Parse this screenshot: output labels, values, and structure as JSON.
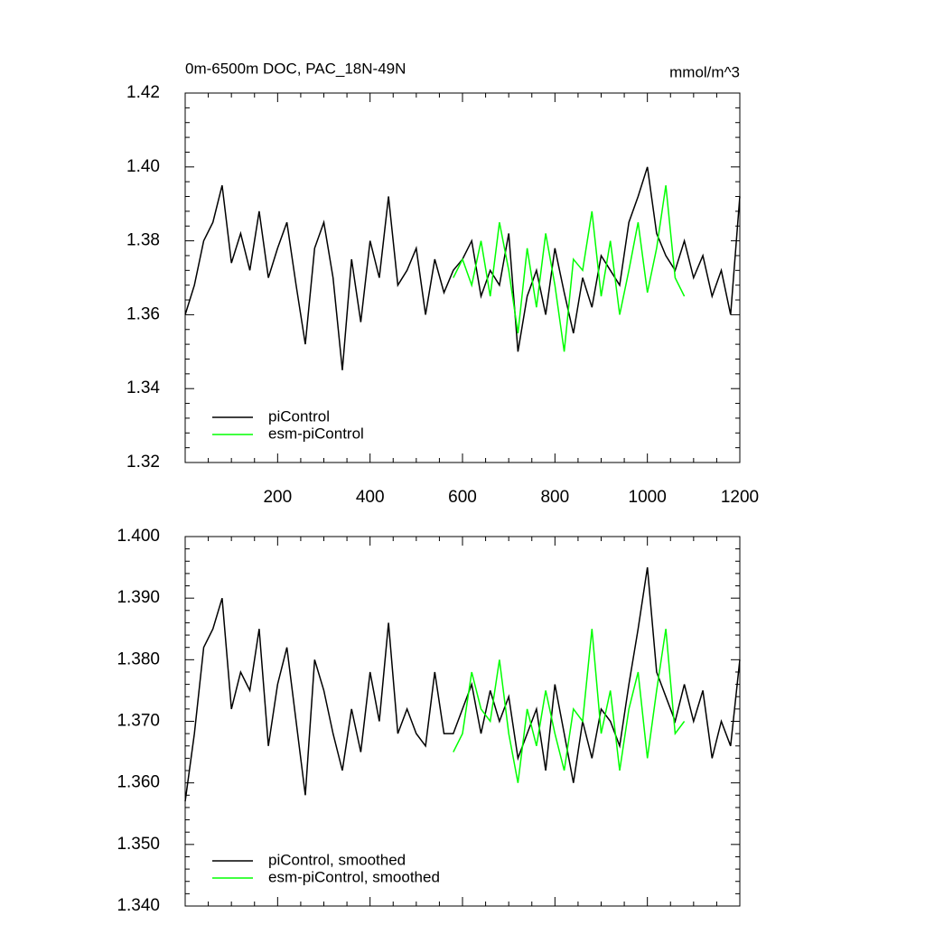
{
  "chart_data": [
    {
      "type": "line",
      "title": "0m-6500m DOC, PAC_18N-49N",
      "units": "mmol/m^3",
      "xlim": [
        0,
        1200
      ],
      "xticks": [
        200,
        400,
        600,
        800,
        1000,
        1200
      ],
      "xticklabels": true,
      "ylim": [
        1.32,
        1.42
      ],
      "yticks": [
        1.32,
        1.34,
        1.36,
        1.38,
        {
          "value": 1.4,
          "label": "1.40"
        },
        1.42
      ],
      "grid": false,
      "legend": "lower left",
      "series": [
        {
          "name": "piControl",
          "color": "#000000",
          "x": [
            0,
            20,
            40,
            60,
            80,
            100,
            120,
            140,
            160,
            180,
            200,
            220,
            240,
            260,
            280,
            300,
            320,
            340,
            360,
            380,
            400,
            420,
            440,
            460,
            480,
            500,
            520,
            540,
            560,
            580,
            600,
            620,
            640,
            660,
            680,
            700,
            720,
            740,
            760,
            780,
            800,
            820,
            840,
            860,
            880,
            900,
            920,
            940,
            960,
            980,
            1000,
            1020,
            1040,
            1060,
            1080,
            1100,
            1120,
            1140,
            1160,
            1180,
            1200
          ],
          "values": [
            1.36,
            1.368,
            1.38,
            1.385,
            1.395,
            1.374,
            1.382,
            1.372,
            1.388,
            1.37,
            1.378,
            1.385,
            1.368,
            1.352,
            1.378,
            1.385,
            1.37,
            1.345,
            1.375,
            1.358,
            1.38,
            1.37,
            1.392,
            1.368,
            1.372,
            1.378,
            1.36,
            1.375,
            1.366,
            1.372,
            1.375,
            1.38,
            1.365,
            1.372,
            1.368,
            1.382,
            1.35,
            1.365,
            1.372,
            1.36,
            1.378,
            1.366,
            1.355,
            1.37,
            1.362,
            1.376,
            1.372,
            1.368,
            1.385,
            1.392,
            1.4,
            1.382,
            1.376,
            1.372,
            1.38,
            1.37,
            1.376,
            1.365,
            1.372,
            1.36,
            1.392
          ]
        },
        {
          "name": "esm-piControl",
          "color": "#00ff00",
          "x": [
            580,
            600,
            620,
            640,
            660,
            680,
            700,
            720,
            740,
            760,
            780,
            800,
            820,
            840,
            860,
            880,
            900,
            920,
            940,
            960,
            980,
            1000,
            1020,
            1040,
            1060,
            1080
          ],
          "values": [
            1.37,
            1.375,
            1.368,
            1.38,
            1.365,
            1.385,
            1.372,
            1.355,
            1.378,
            1.362,
            1.382,
            1.368,
            1.35,
            1.375,
            1.372,
            1.388,
            1.365,
            1.38,
            1.36,
            1.372,
            1.385,
            1.366,
            1.378,
            1.395,
            1.37,
            1.365
          ]
        }
      ]
    },
    {
      "type": "line",
      "xlim": [
        0,
        1200
      ],
      "xticks": [
        200,
        400,
        600,
        800,
        1000,
        1200
      ],
      "xticklabels": false,
      "ylim": [
        1.34,
        1.4
      ],
      "yticks": [
        {
          "value": 1.34,
          "label": "1.340"
        },
        {
          "value": 1.35,
          "label": "1.350"
        },
        {
          "value": 1.36,
          "label": "1.360"
        },
        {
          "value": 1.37,
          "label": "1.370"
        },
        {
          "value": 1.38,
          "label": "1.380"
        },
        {
          "value": 1.39,
          "label": "1.390"
        },
        {
          "value": 1.4,
          "label": "1.400"
        }
      ],
      "grid": false,
      "legend": "lower left",
      "series": [
        {
          "name": "piControl, smoothed",
          "color": "#000000",
          "x": [
            0,
            20,
            40,
            60,
            80,
            100,
            120,
            140,
            160,
            180,
            200,
            220,
            240,
            260,
            280,
            300,
            320,
            340,
            360,
            380,
            400,
            420,
            440,
            460,
            480,
            500,
            520,
            540,
            560,
            580,
            600,
            620,
            640,
            660,
            680,
            700,
            720,
            740,
            760,
            780,
            800,
            820,
            840,
            860,
            880,
            900,
            920,
            940,
            960,
            980,
            1000,
            1020,
            1040,
            1060,
            1080,
            1100,
            1120,
            1140,
            1160,
            1180,
            1200
          ],
          "values": [
            1.357,
            1.368,
            1.382,
            1.385,
            1.39,
            1.372,
            1.378,
            1.375,
            1.385,
            1.366,
            1.376,
            1.382,
            1.37,
            1.358,
            1.38,
            1.375,
            1.368,
            1.362,
            1.372,
            1.365,
            1.378,
            1.37,
            1.386,
            1.368,
            1.372,
            1.368,
            1.366,
            1.378,
            1.368,
            1.368,
            1.372,
            1.376,
            1.368,
            1.375,
            1.37,
            1.374,
            1.364,
            1.368,
            1.372,
            1.362,
            1.376,
            1.368,
            1.36,
            1.37,
            1.364,
            1.372,
            1.37,
            1.366,
            1.376,
            1.385,
            1.395,
            1.378,
            1.374,
            1.37,
            1.376,
            1.37,
            1.375,
            1.364,
            1.37,
            1.366,
            1.38
          ]
        },
        {
          "name": "esm-piControl, smoothed",
          "color": "#00ff00",
          "x": [
            580,
            600,
            620,
            640,
            660,
            680,
            700,
            720,
            740,
            760,
            780,
            800,
            820,
            840,
            860,
            880,
            900,
            920,
            940,
            960,
            980,
            1000,
            1020,
            1040,
            1060,
            1080
          ],
          "values": [
            1.365,
            1.368,
            1.378,
            1.372,
            1.37,
            1.38,
            1.368,
            1.36,
            1.372,
            1.366,
            1.375,
            1.368,
            1.362,
            1.372,
            1.37,
            1.385,
            1.368,
            1.375,
            1.362,
            1.372,
            1.378,
            1.364,
            1.375,
            1.385,
            1.368,
            1.37
          ]
        }
      ]
    }
  ]
}
